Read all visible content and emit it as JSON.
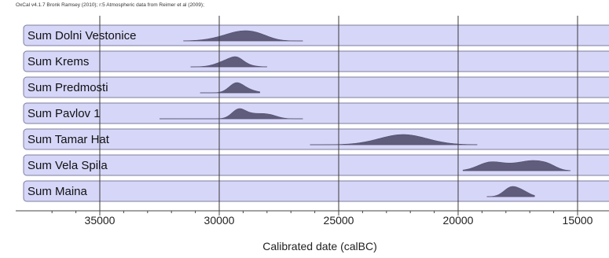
{
  "header": "OxCal v4.1.7 Bronk Ramsey (2010); r:5 Atmospheric data from Reimer et al (2009);",
  "chart_data": {
    "type": "area",
    "title": "",
    "xlabel": "Calibrated date (calBC)",
    "ylabel": "",
    "xlim": [
      37500,
      14500
    ],
    "x_ticks": [
      35000,
      30000,
      25000,
      20000,
      15000
    ],
    "x_tick_labels": [
      "35000",
      "30000",
      "25000",
      "20000",
      "15000"
    ],
    "grid": true,
    "series": [
      {
        "name": "Sum Dolni Vestonice",
        "peaks": [
          [
            29700,
            700,
            0.45
          ],
          [
            29000,
            600,
            1.0
          ],
          [
            28300,
            500,
            0.55
          ]
        ],
        "tail": [
          31500,
          26500
        ]
      },
      {
        "name": "Sum Krems",
        "peaks": [
          [
            29500,
            500,
            0.9
          ],
          [
            29250,
            250,
            0.4
          ]
        ],
        "tail": [
          31200,
          28000
        ]
      },
      {
        "name": "Sum Predmosti",
        "peaks": [
          [
            29300,
            300,
            1.0
          ],
          [
            28800,
            350,
            0.3
          ]
        ],
        "tail": [
          30800,
          28300
        ]
      },
      {
        "name": "Sum Pavlov 1",
        "peaks": [
          [
            29200,
            280,
            0.9
          ],
          [
            28600,
            450,
            0.5
          ],
          [
            27900,
            350,
            0.35
          ]
        ],
        "tail": [
          32500,
          26500
        ]
      },
      {
        "name": "Sum Tamar Hat",
        "peaks": [
          [
            22300,
            1000,
            1.0
          ]
        ],
        "tail": [
          26200,
          19200
        ]
      },
      {
        "name": "Sum Vela Spila",
        "peaks": [
          [
            18700,
            500,
            0.9
          ],
          [
            17600,
            600,
            0.7
          ],
          [
            16800,
            450,
            0.8
          ],
          [
            16200,
            350,
            0.5
          ]
        ],
        "tail": [
          19800,
          15300
        ]
      },
      {
        "name": "Sum Maina",
        "peaks": [
          [
            17800,
            300,
            1.0
          ],
          [
            17300,
            300,
            0.55
          ]
        ],
        "tail": [
          18800,
          16800
        ]
      }
    ]
  }
}
